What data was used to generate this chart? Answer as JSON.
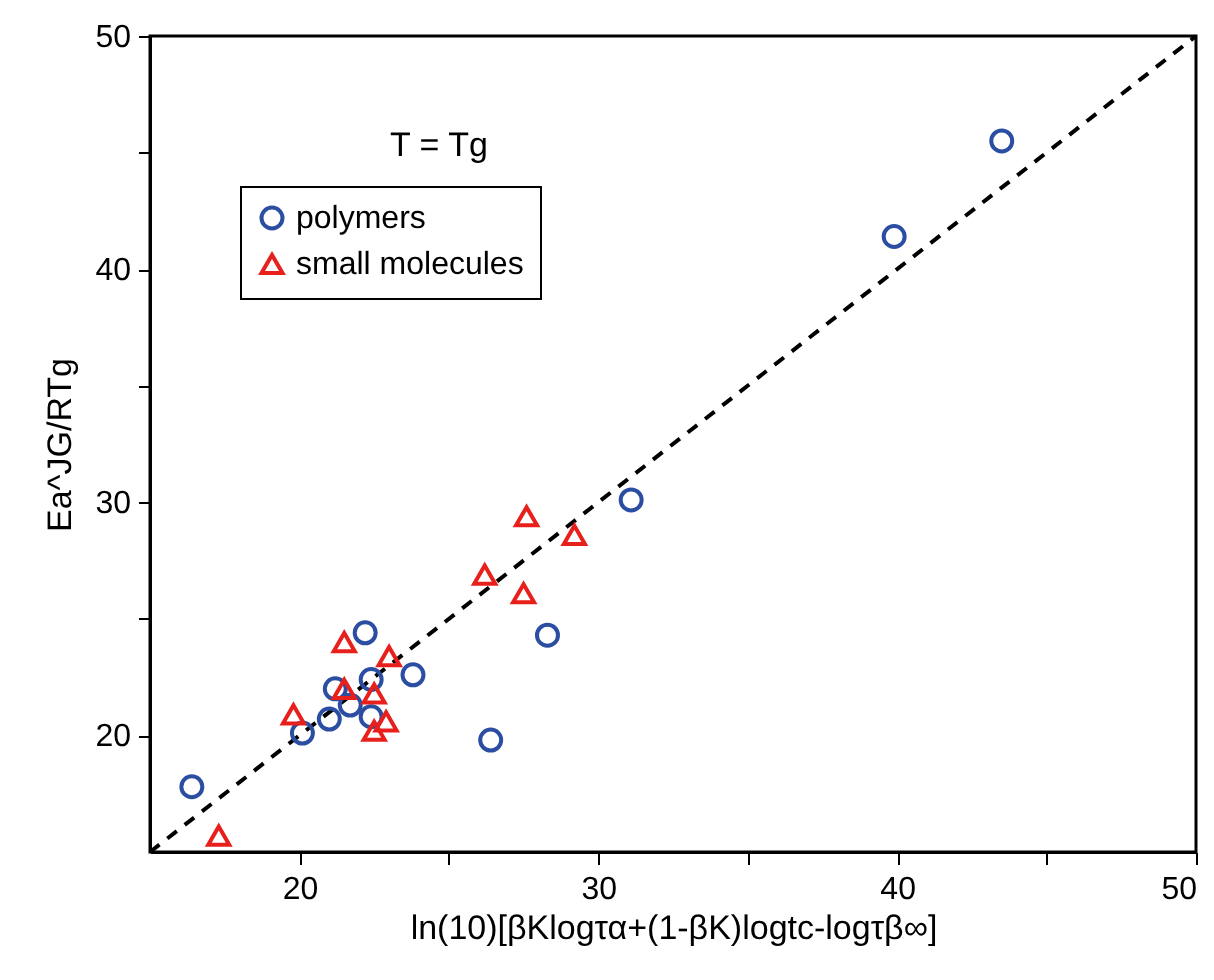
{
  "chart_data": {
    "type": "scatter",
    "xlabel": "ln(10)[βKlogτα+(1-βK)logtc-logτβ∞]",
    "ylabel": "Ea^JG/RTg",
    "annotations": [
      "T = Tg"
    ],
    "xlim": [
      15,
      50
    ],
    "ylim": [
      15,
      50
    ],
    "xticks": [
      20,
      {
        "value": 25,
        "label": null
      },
      30,
      {
        "value": 35,
        "label": null
      },
      40,
      {
        "value": 45,
        "label": null
      },
      50
    ],
    "yticks": [
      20,
      {
        "value": 25,
        "label": null
      },
      30,
      {
        "value": 35,
        "label": null
      },
      40,
      {
        "value": 45,
        "label": null
      },
      50
    ],
    "grid": false,
    "legend": "top left",
    "series": [
      {
        "type": "line",
        "color": "#000000",
        "line_style": "dashed",
        "marker": "none",
        "x": [
          15,
          50
        ],
        "values": [
          15,
          50
        ]
      },
      {
        "name": "polymers",
        "color": "#2b4ea2",
        "marker": "circle",
        "x": [
          16.4,
          20.1,
          21.0,
          21.2,
          21.7,
          22.2,
          22.4,
          22.4,
          23.8,
          26.4,
          28.3,
          31.1,
          39.9,
          43.5
        ],
        "values": [
          17.8,
          20.1,
          20.7,
          22.0,
          21.3,
          24.4,
          22.4,
          20.8,
          22.6,
          19.8,
          24.3,
          30.1,
          41.4,
          45.5
        ]
      },
      {
        "name": "small molecules",
        "color": "#e8201c",
        "marker": "triangle",
        "x": [
          17.3,
          19.8,
          21.5,
          21.5,
          22.5,
          22.5,
          22.9,
          23.0,
          26.2,
          27.5,
          27.6,
          29.2
        ],
        "values": [
          15.7,
          20.9,
          24.0,
          22.0,
          21.8,
          20.2,
          20.6,
          23.4,
          26.9,
          26.1,
          29.4,
          28.6
        ]
      }
    ]
  }
}
